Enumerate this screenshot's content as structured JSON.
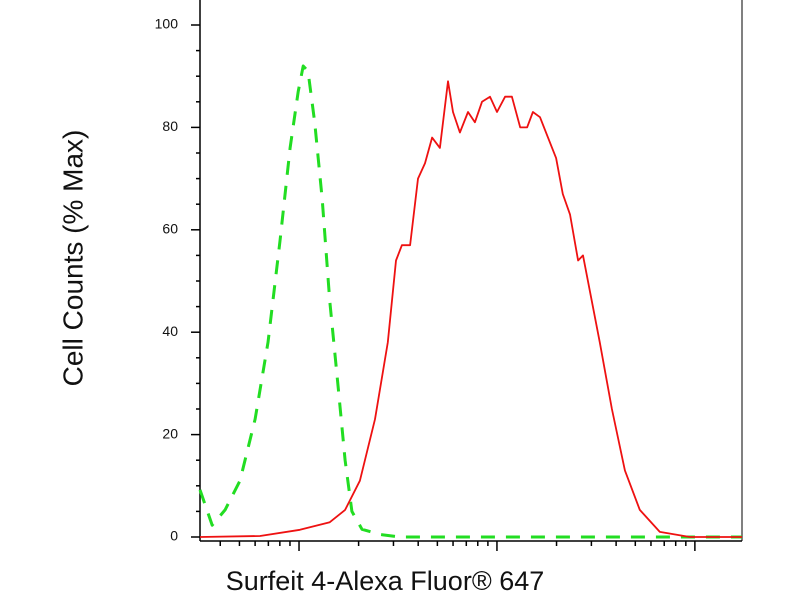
{
  "chart_data": {
    "type": "line",
    "ylabel": "Cell Counts (% Max)",
    "xlabel": "Surfeit 4-Alexa Fluor® 647",
    "xscale": "log",
    "xlim": [
      3.16,
      1730
    ],
    "xticks": [
      10,
      100,
      1000
    ],
    "xminorticks": [
      4,
      5,
      6,
      7,
      8,
      9,
      20,
      30,
      40,
      50,
      60,
      70,
      80,
      90,
      200,
      300,
      400,
      500,
      600,
      700,
      800,
      900
    ],
    "ylim": [
      0,
      100
    ],
    "yticks": [
      0,
      20,
      40,
      60,
      80,
      100
    ],
    "yminorticks": [
      5,
      10,
      15,
      25,
      30,
      35,
      45,
      50,
      55,
      65,
      70,
      75,
      85,
      90,
      95
    ],
    "series": [
      {
        "color": "#22dd22",
        "dash": true,
        "x": [
          3.16,
          3.64,
          4.23,
          5.03,
          6.0,
          6.97,
          8.02,
          9.01,
          9.9,
          10.5,
          11.1,
          12.0,
          13.1,
          14.3,
          15.8,
          17.1,
          18.5,
          20.8,
          25.6,
          32.4,
          1730
        ],
        "values": [
          9.2,
          2.3,
          5.3,
          11,
          23,
          38,
          58,
          76,
          87,
          92,
          91,
          81,
          66,
          46,
          29,
          15,
          5,
          1.5,
          0.5,
          0,
          0
        ]
      },
      {
        "color": "#ee1111",
        "dash": false,
        "x": [
          3.16,
          6.35,
          10.1,
          14.3,
          17.1,
          20.3,
          24.2,
          28.1,
          30.9,
          33.1,
          36.4,
          39.9,
          43.3,
          47.0,
          51.5,
          56.6,
          60.0,
          65.0,
          71.4,
          77.4,
          84.0,
          92.2,
          100,
          110,
          119,
          131,
          142,
          152,
          165,
          181,
          199,
          215,
          234,
          257,
          272,
          295,
          331,
          381,
          443,
          527,
          665,
          944,
          1730
        ],
        "values": [
          0,
          0.2,
          1.4,
          2.9,
          5.3,
          11,
          23,
          38,
          54,
          57,
          57,
          70,
          73,
          78,
          76,
          89,
          83,
          79,
          83,
          81,
          85,
          86,
          83,
          86,
          86,
          80,
          80,
          83,
          82,
          78,
          74,
          67,
          63,
          54,
          55,
          48,
          38,
          25,
          13,
          5.3,
          1,
          0,
          0
        ]
      }
    ]
  }
}
